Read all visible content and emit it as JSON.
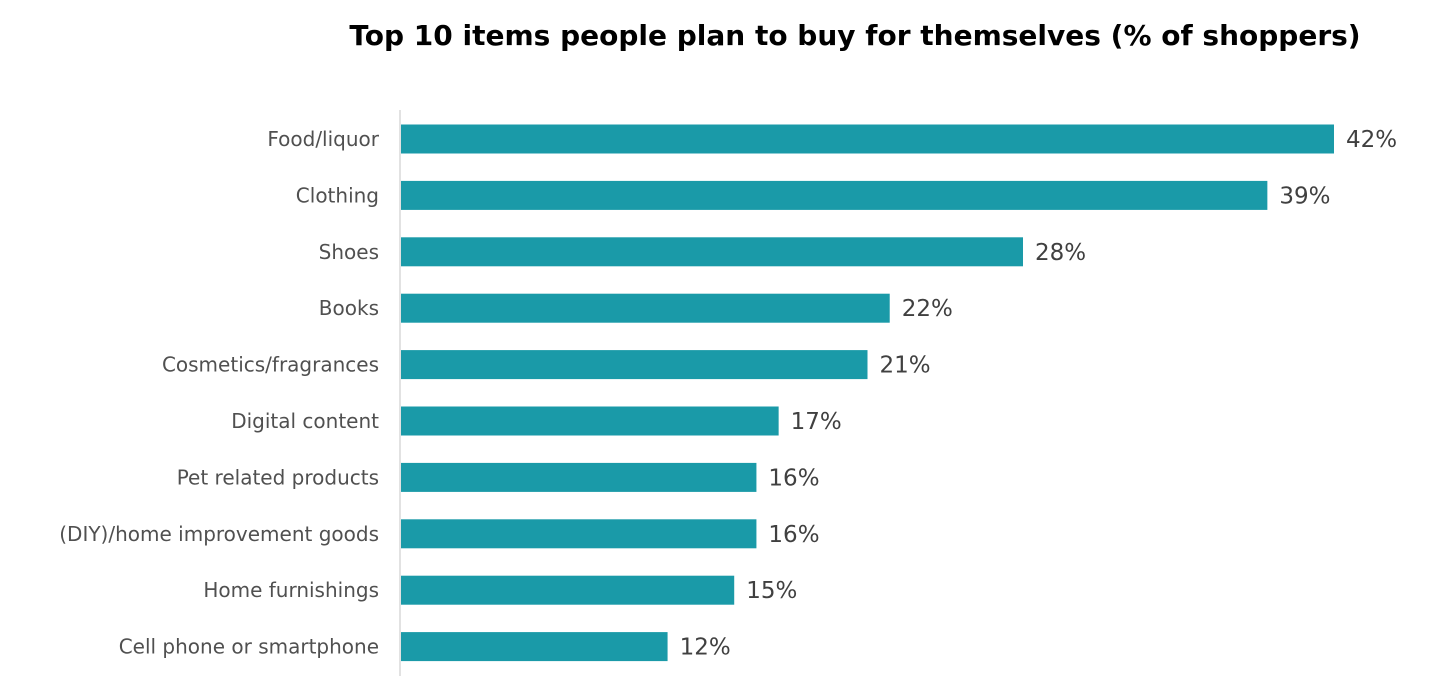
{
  "chart_data": {
    "type": "bar",
    "orientation": "horizontal",
    "title": "Top 10 items people plan to buy for themselves (% of shoppers)",
    "categories": [
      "Food/liquor",
      "Clothing",
      "Shoes",
      "Books",
      "Cosmetics/fragrances",
      "Digital content",
      "Pet related products",
      "(DIY)/home improvement goods",
      "Home furnishings",
      "Cell phone or smartphone"
    ],
    "values": [
      42,
      39,
      28,
      22,
      21,
      17,
      16,
      16,
      15,
      12
    ],
    "value_labels": [
      "42%",
      "39%",
      "28%",
      "22%",
      "21%",
      "17%",
      "16%",
      "16%",
      "15%",
      "12%"
    ],
    "xlim": [
      0,
      42
    ],
    "grid": false,
    "legend": "none",
    "bar_color": "#1a9aa8"
  }
}
